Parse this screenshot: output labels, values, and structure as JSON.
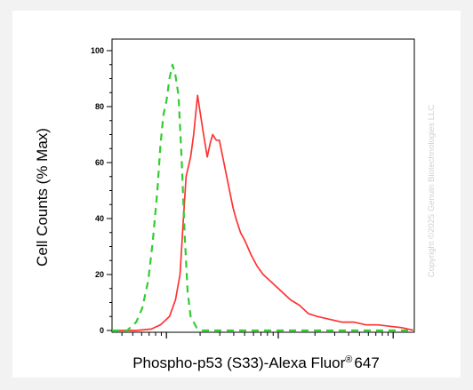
{
  "chart_data": {
    "type": "line",
    "xlabel": "Phospho-p53 (S33)-Alexa Fluor",
    "xlabel_sup": "®",
    "xlabel_suffix": "647",
    "ylabel": "Cell Counts (% Max)",
    "ylim": [
      0,
      100
    ],
    "xlim": [
      0,
      1
    ],
    "yticks": [
      0,
      20,
      40,
      60,
      80,
      100
    ],
    "x_scale": "log (unlabeled decade ticks)",
    "watermark": "Copyright ©2025 Genuin Biotechnologies LLC",
    "series": [
      {
        "color": "#ff3333",
        "style": "solid",
        "x": [
          0.0,
          0.08,
          0.13,
          0.16,
          0.19,
          0.21,
          0.225,
          0.235,
          0.245,
          0.26,
          0.27,
          0.283,
          0.3,
          0.315,
          0.325,
          0.333,
          0.345,
          0.355,
          0.37,
          0.385,
          0.4,
          0.41,
          0.425,
          0.44,
          0.46,
          0.48,
          0.5,
          0.53,
          0.56,
          0.59,
          0.62,
          0.65,
          0.68,
          0.72,
          0.76,
          0.8,
          0.84,
          0.88,
          0.92,
          0.96,
          1.0
        ],
        "y": [
          0,
          0,
          0.5,
          2,
          5,
          11,
          20,
          38,
          55,
          62,
          70,
          84,
          72,
          62,
          67,
          70,
          68,
          68,
          60,
          52,
          44,
          40,
          35,
          32,
          27,
          23,
          20,
          17,
          14,
          11,
          9,
          6,
          5,
          4,
          3,
          3,
          2,
          2,
          1.5,
          1,
          0
        ]
      },
      {
        "color": "#33cc33",
        "style": "dashed",
        "x": [
          0.0,
          0.05,
          0.08,
          0.1,
          0.12,
          0.135,
          0.15,
          0.16,
          0.17,
          0.18,
          0.19,
          0.2,
          0.21,
          0.22,
          0.23,
          0.24,
          0.25,
          0.26,
          0.28,
          0.3,
          0.4,
          0.5,
          0.6,
          0.7,
          0.8,
          0.9,
          1.0
        ],
        "y": [
          0,
          0,
          3,
          8,
          18,
          32,
          50,
          66,
          77,
          82,
          90,
          95,
          91,
          84,
          62,
          35,
          14,
          5,
          1,
          0,
          0,
          0,
          0,
          0,
          0,
          0,
          0
        ]
      }
    ]
  }
}
